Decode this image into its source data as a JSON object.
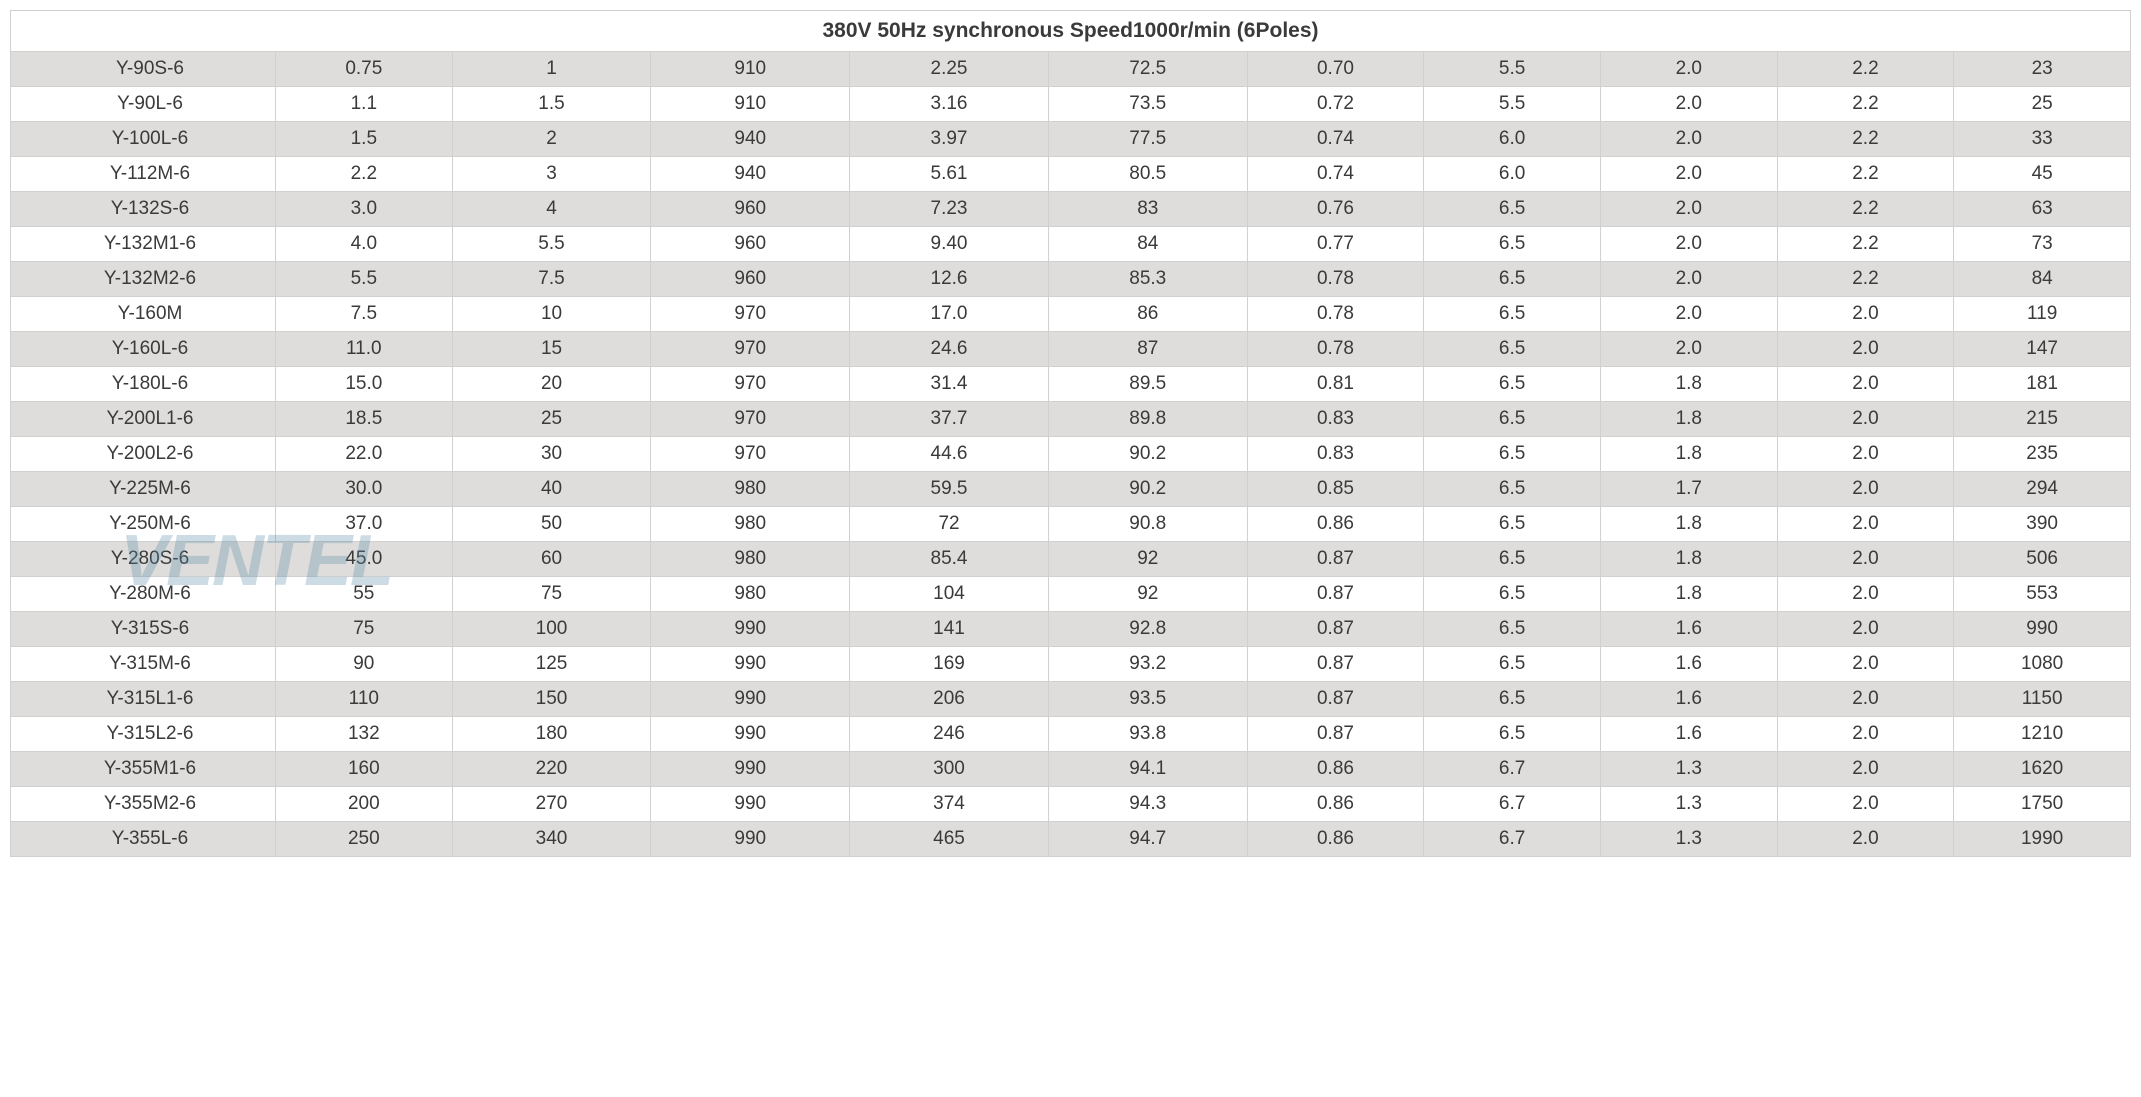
{
  "table": {
    "header_title": "380V 50Hz synchronous Speed1000r/min (6Poles)",
    "header_fontsize": 21,
    "cell_fontsize": 19,
    "text_color": "#3a3a3a",
    "border_color": "#d0d0d0",
    "even_row_bg": "#dedddb",
    "odd_row_bg": "#ffffff",
    "header_bg": "#ffffff",
    "column_count": 11,
    "column_widths_pct": [
      12,
      8,
      9,
      9,
      9,
      9,
      8,
      8,
      8,
      8,
      8
    ],
    "rows": [
      [
        "Y-90S-6",
        "0.75",
        "1",
        "910",
        "2.25",
        "72.5",
        "0.70",
        "5.5",
        "2.0",
        "2.2",
        "23"
      ],
      [
        "Y-90L-6",
        "1.1",
        "1.5",
        "910",
        "3.16",
        "73.5",
        "0.72",
        "5.5",
        "2.0",
        "2.2",
        "25"
      ],
      [
        "Y-100L-6",
        "1.5",
        "2",
        "940",
        "3.97",
        "77.5",
        "0.74",
        "6.0",
        "2.0",
        "2.2",
        "33"
      ],
      [
        "Y-112M-6",
        "2.2",
        "3",
        "940",
        "5.61",
        "80.5",
        "0.74",
        "6.0",
        "2.0",
        "2.2",
        "45"
      ],
      [
        "Y-132S-6",
        "3.0",
        "4",
        "960",
        "7.23",
        "83",
        "0.76",
        "6.5",
        "2.0",
        "2.2",
        "63"
      ],
      [
        "Y-132M1-6",
        "4.0",
        "5.5",
        "960",
        "9.40",
        "84",
        "0.77",
        "6.5",
        "2.0",
        "2.2",
        "73"
      ],
      [
        "Y-132M2-6",
        "5.5",
        "7.5",
        "960",
        "12.6",
        "85.3",
        "0.78",
        "6.5",
        "2.0",
        "2.2",
        "84"
      ],
      [
        "Y-160M",
        "7.5",
        "10",
        "970",
        "17.0",
        "86",
        "0.78",
        "6.5",
        "2.0",
        "2.0",
        "119"
      ],
      [
        "Y-160L-6",
        "11.0",
        "15",
        "970",
        "24.6",
        "87",
        "0.78",
        "6.5",
        "2.0",
        "2.0",
        "147"
      ],
      [
        "Y-180L-6",
        "15.0",
        "20",
        "970",
        "31.4",
        "89.5",
        "0.81",
        "6.5",
        "1.8",
        "2.0",
        "181"
      ],
      [
        "Y-200L1-6",
        "18.5",
        "25",
        "970",
        "37.7",
        "89.8",
        "0.83",
        "6.5",
        "1.8",
        "2.0",
        "215"
      ],
      [
        "Y-200L2-6",
        "22.0",
        "30",
        "970",
        "44.6",
        "90.2",
        "0.83",
        "6.5",
        "1.8",
        "2.0",
        "235"
      ],
      [
        "Y-225M-6",
        "30.0",
        "40",
        "980",
        "59.5",
        "90.2",
        "0.85",
        "6.5",
        "1.7",
        "2.0",
        "294"
      ],
      [
        "Y-250M-6",
        "37.0",
        "50",
        "980",
        "72",
        "90.8",
        "0.86",
        "6.5",
        "1.8",
        "2.0",
        "390"
      ],
      [
        "Y-280S-6",
        "45.0",
        "60",
        "980",
        "85.4",
        "92",
        "0.87",
        "6.5",
        "1.8",
        "2.0",
        "506"
      ],
      [
        "Y-280M-6",
        "55",
        "75",
        "980",
        "104",
        "92",
        "0.87",
        "6.5",
        "1.8",
        "2.0",
        "553"
      ],
      [
        "Y-315S-6",
        "75",
        "100",
        "990",
        "141",
        "92.8",
        "0.87",
        "6.5",
        "1.6",
        "2.0",
        "990"
      ],
      [
        "Y-315M-6",
        "90",
        "125",
        "990",
        "169",
        "93.2",
        "0.87",
        "6.5",
        "1.6",
        "2.0",
        "1080"
      ],
      [
        "Y-315L1-6",
        "110",
        "150",
        "990",
        "206",
        "93.5",
        "0.87",
        "6.5",
        "1.6",
        "2.0",
        "1150"
      ],
      [
        "Y-315L2-6",
        "132",
        "180",
        "990",
        "246",
        "93.8",
        "0.87",
        "6.5",
        "1.6",
        "2.0",
        "1210"
      ],
      [
        "Y-355M1-6",
        "160",
        "220",
        "990",
        "300",
        "94.1",
        "0.86",
        "6.7",
        "1.3",
        "2.0",
        "1620"
      ],
      [
        "Y-355M2-6",
        "200",
        "270",
        "990",
        "374",
        "94.3",
        "0.86",
        "6.7",
        "1.3",
        "2.0",
        "1750"
      ],
      [
        "Y-355L-6",
        "250",
        "340",
        "990",
        "465",
        "94.7",
        "0.86",
        "6.7",
        "1.3",
        "2.0",
        "1990"
      ]
    ]
  },
  "watermark": {
    "fan_color": "#9aa0a0",
    "fan_opacity": 0.25,
    "text": "VENTEL",
    "text_color": "#5a8aa8",
    "text_opacity": 0.3,
    "text_fontsize": 72
  }
}
